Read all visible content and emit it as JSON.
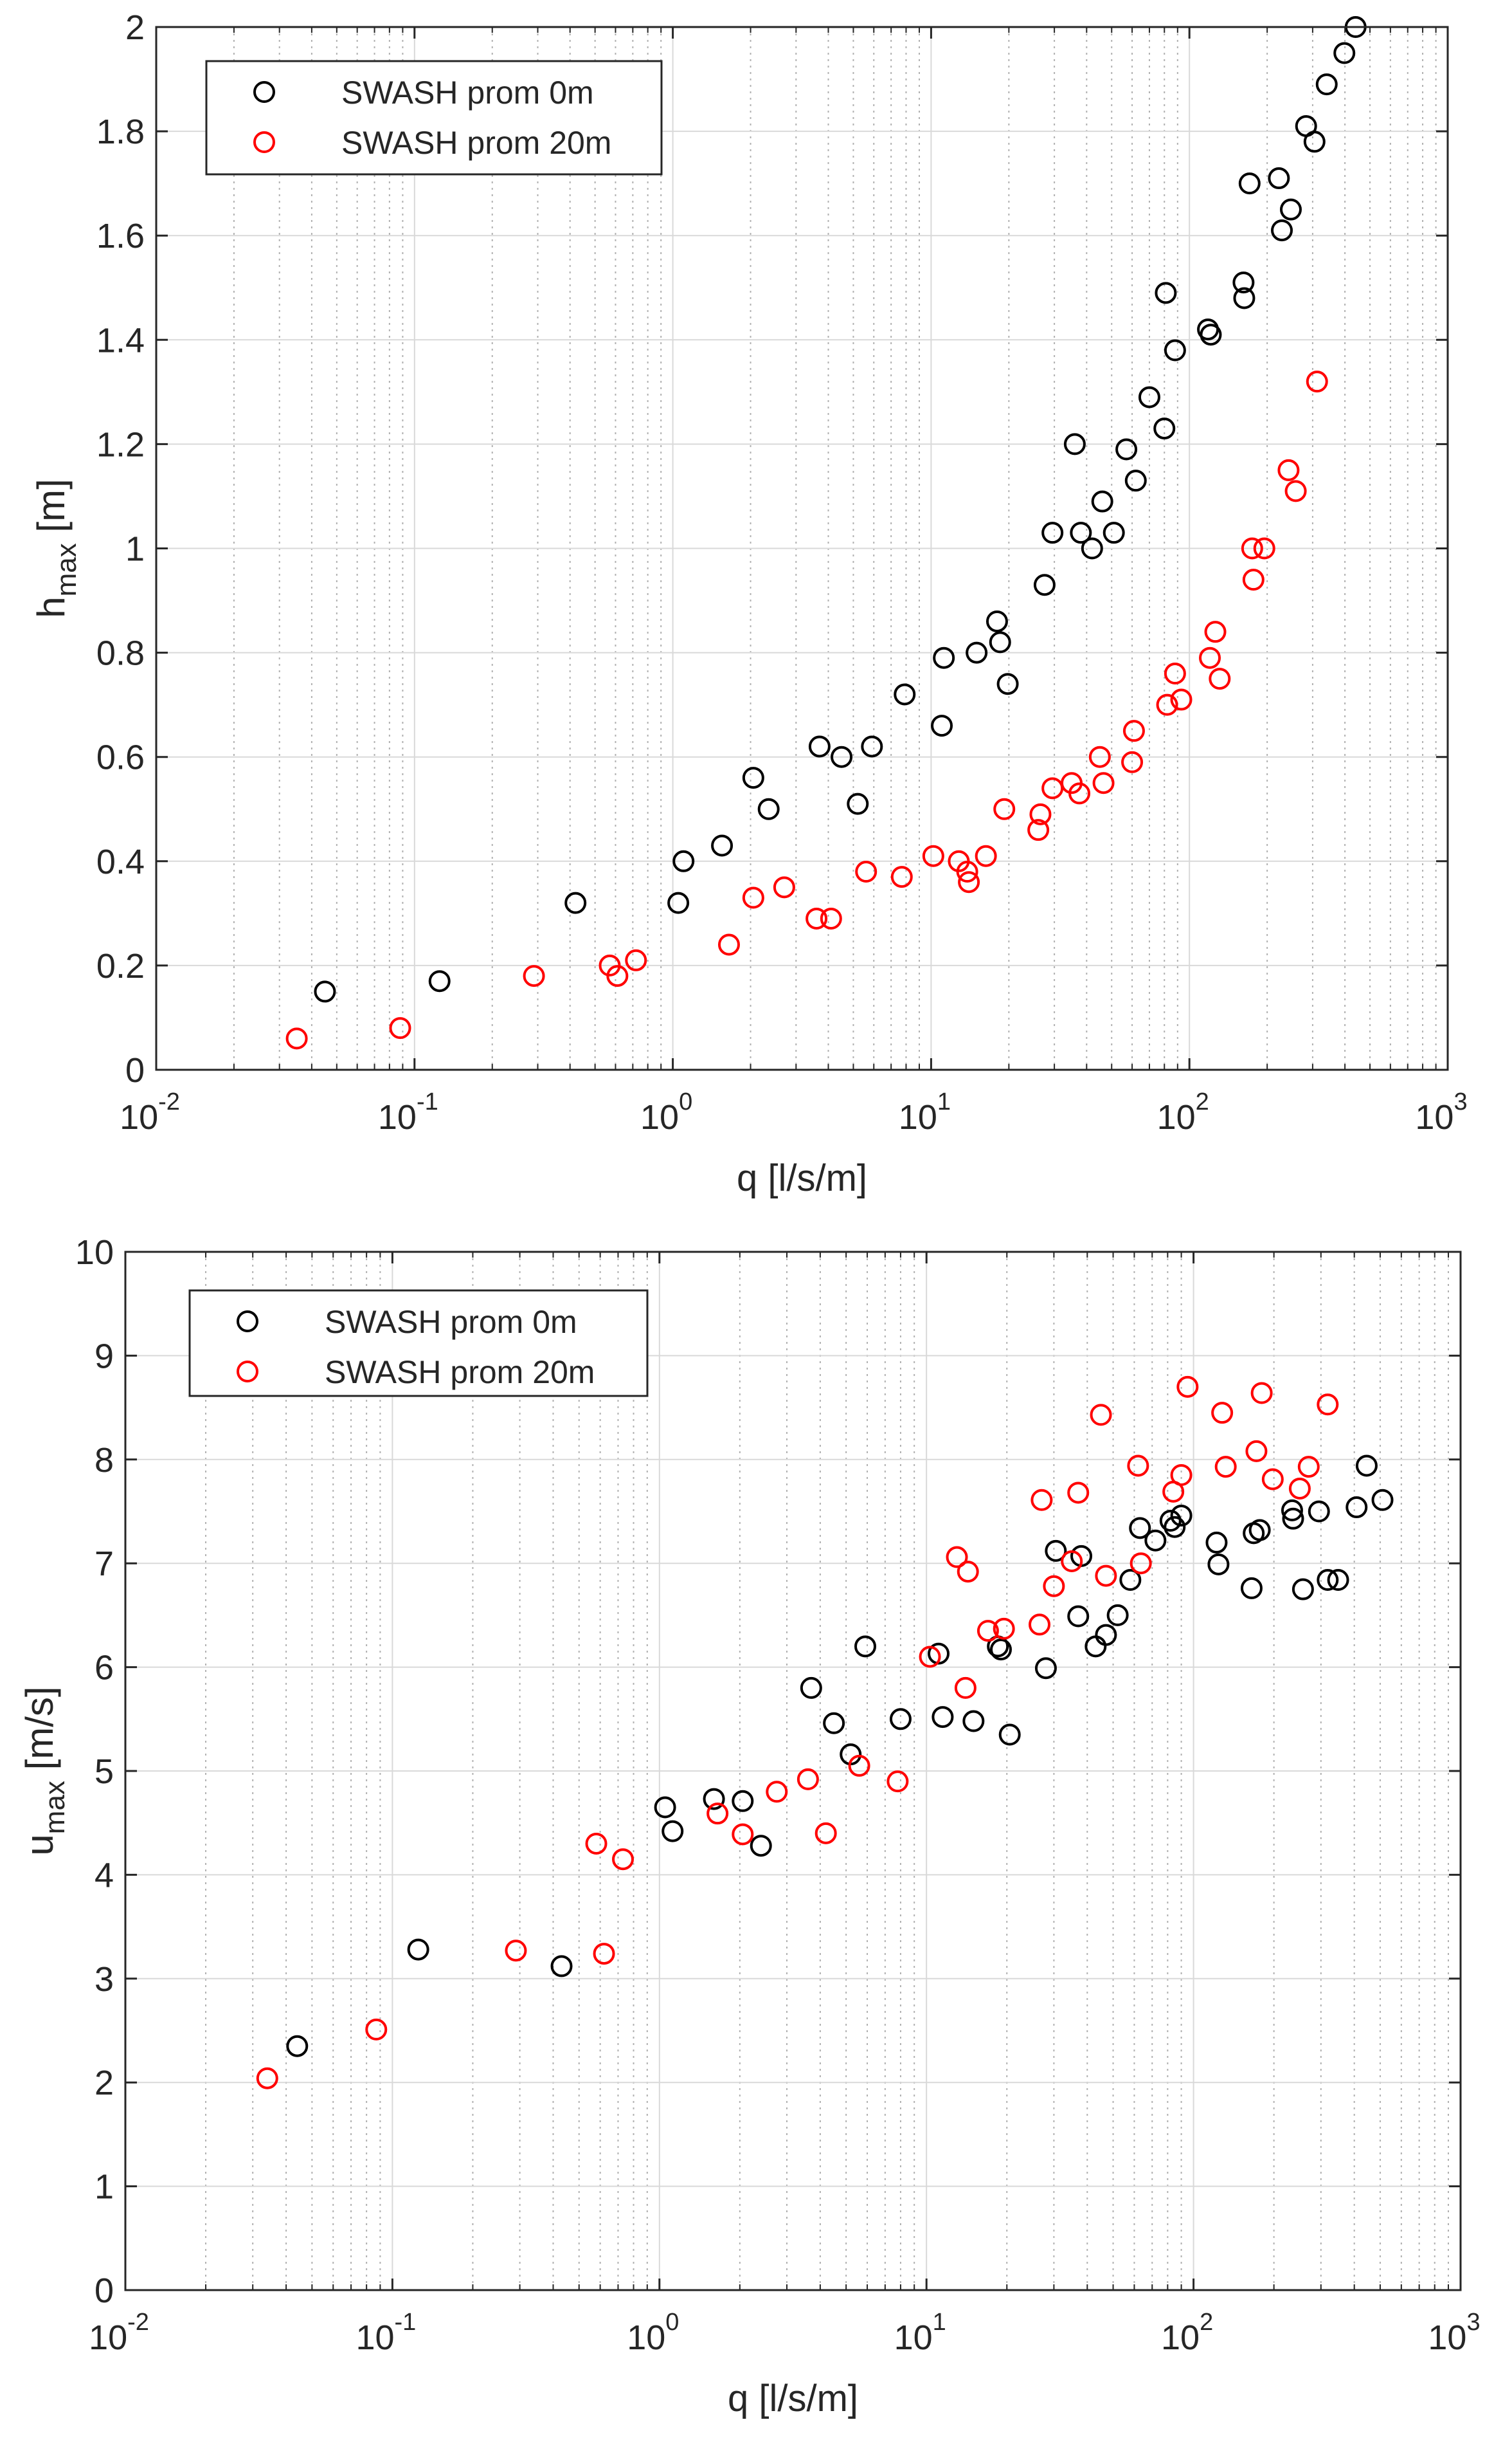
{
  "chart_data": [
    {
      "type": "scatter",
      "id": "h",
      "xscale": "log",
      "xlim": [
        0.01,
        1000
      ],
      "ylim": [
        0,
        2
      ],
      "xlabel": "q [l/s/m]",
      "ylabel": {
        "base": "h",
        "sub": "max",
        "unit": "[m]"
      },
      "x_ticks": [
        0.01,
        0.1,
        1,
        10,
        100,
        1000
      ],
      "x_tick_labels": [
        {
          "base": "10",
          "exp": "-2"
        },
        {
          "base": "10",
          "exp": "-1"
        },
        {
          "base": "10",
          "exp": "0"
        },
        {
          "base": "10",
          "exp": "1"
        },
        {
          "base": "10",
          "exp": "2"
        },
        {
          "base": "10",
          "exp": "3"
        }
      ],
      "y_ticks": [
        0,
        0.2,
        0.4,
        0.6,
        0.8,
        1,
        1.2,
        1.4,
        1.6,
        1.8,
        2
      ],
      "y_tick_labels": [
        "0",
        "0.2",
        "0.4",
        "0.6",
        "0.8",
        "1",
        "1.2",
        "1.4",
        "1.6",
        "1.8",
        "2"
      ],
      "grid": true,
      "legend_position": "top-left",
      "series": [
        {
          "name": "SWASH prom 0m",
          "color": "#000000",
          "points": [
            [
              0.045,
              0.15
            ],
            [
              0.125,
              0.17
            ],
            [
              0.42,
              0.32
            ],
            [
              1.05,
              0.32
            ],
            [
              1.1,
              0.4
            ],
            [
              1.55,
              0.43
            ],
            [
              2.05,
              0.56
            ],
            [
              2.35,
              0.5
            ],
            [
              3.7,
              0.62
            ],
            [
              4.5,
              0.6
            ],
            [
              5.2,
              0.51
            ],
            [
              5.9,
              0.62
            ],
            [
              7.9,
              0.72
            ],
            [
              11.0,
              0.66
            ],
            [
              11.2,
              0.79
            ],
            [
              15.0,
              0.8
            ],
            [
              18.0,
              0.86
            ],
            [
              18.5,
              0.82
            ],
            [
              19.8,
              0.74
            ],
            [
              27.5,
              0.93
            ],
            [
              29.5,
              1.03
            ],
            [
              36.0,
              1.2
            ],
            [
              38.0,
              1.03
            ],
            [
              42.0,
              1.0
            ],
            [
              46.0,
              1.09
            ],
            [
              51.0,
              1.03
            ],
            [
              57.0,
              1.19
            ],
            [
              62.0,
              1.13
            ],
            [
              70.0,
              1.29
            ],
            [
              80.0,
              1.23
            ],
            [
              81.0,
              1.49
            ],
            [
              88.0,
              1.38
            ],
            [
              118.0,
              1.42
            ],
            [
              121.0,
              1.41
            ],
            [
              162.0,
              1.51
            ],
            [
              163.0,
              1.48
            ],
            [
              171.0,
              1.7
            ],
            [
              222.0,
              1.71
            ],
            [
              228.0,
              1.61
            ],
            [
              247.0,
              1.65
            ],
            [
              283.0,
              1.81
            ],
            [
              305.0,
              1.78
            ],
            [
              340.0,
              1.89
            ],
            [
              398.0,
              1.95
            ],
            [
              440.0,
              2.0
            ]
          ]
        },
        {
          "name": "SWASH prom 20m",
          "color": "#ff0000",
          "points": [
            [
              0.035,
              0.06
            ],
            [
              0.088,
              0.08
            ],
            [
              0.29,
              0.18
            ],
            [
              0.57,
              0.2
            ],
            [
              0.61,
              0.18
            ],
            [
              0.72,
              0.21
            ],
            [
              1.65,
              0.24
            ],
            [
              2.05,
              0.33
            ],
            [
              2.7,
              0.35
            ],
            [
              3.6,
              0.29
            ],
            [
              4.1,
              0.29
            ],
            [
              5.6,
              0.38
            ],
            [
              7.7,
              0.37
            ],
            [
              10.2,
              0.41
            ],
            [
              12.8,
              0.4
            ],
            [
              13.8,
              0.38
            ],
            [
              14.0,
              0.36
            ],
            [
              16.3,
              0.41
            ],
            [
              19.2,
              0.5
            ],
            [
              26.0,
              0.46
            ],
            [
              26.5,
              0.49
            ],
            [
              29.5,
              0.54
            ],
            [
              35.0,
              0.55
            ],
            [
              37.5,
              0.53
            ],
            [
              45.0,
              0.6
            ],
            [
              46.5,
              0.55
            ],
            [
              60.0,
              0.59
            ],
            [
              61.0,
              0.65
            ],
            [
              82.0,
              0.7
            ],
            [
              88.0,
              0.76
            ],
            [
              93.0,
              0.71
            ],
            [
              120.0,
              0.79
            ],
            [
              126.0,
              0.84
            ],
            [
              131.0,
              0.75
            ],
            [
              175.0,
              1.0
            ],
            [
              177.0,
              0.94
            ],
            [
              195.0,
              1.0
            ],
            [
              242.0,
              1.15
            ],
            [
              258.0,
              1.11
            ],
            [
              312.0,
              1.32
            ]
          ]
        }
      ]
    },
    {
      "type": "scatter",
      "id": "u",
      "xscale": "log",
      "xlim": [
        0.01,
        1000
      ],
      "ylim": [
        0,
        10
      ],
      "xlabel": "q [l/s/m]",
      "ylabel": {
        "base": "u",
        "sub": "max",
        "unit": "[m/s]"
      },
      "x_ticks": [
        0.01,
        0.1,
        1,
        10,
        100,
        1000
      ],
      "x_tick_labels": [
        {
          "base": "10",
          "exp": "-2"
        },
        {
          "base": "10",
          "exp": "-1"
        },
        {
          "base": "10",
          "exp": "0"
        },
        {
          "base": "10",
          "exp": "1"
        },
        {
          "base": "10",
          "exp": "2"
        },
        {
          "base": "10",
          "exp": "3"
        }
      ],
      "y_ticks": [
        0,
        1,
        2,
        3,
        4,
        5,
        6,
        7,
        8,
        9,
        10
      ],
      "y_tick_labels": [
        "0",
        "1",
        "2",
        "3",
        "4",
        "5",
        "6",
        "7",
        "8",
        "9",
        "10"
      ],
      "grid": true,
      "legend_position": "top-left",
      "series": [
        {
          "name": "SWASH prom 0m",
          "color": "#000000",
          "points": [
            [
              0.044,
              2.35
            ],
            [
              0.125,
              3.28
            ],
            [
              0.43,
              3.12
            ],
            [
              1.05,
              4.65
            ],
            [
              1.12,
              4.42
            ],
            [
              1.6,
              4.73
            ],
            [
              2.05,
              4.71
            ],
            [
              2.4,
              4.28
            ],
            [
              3.7,
              5.8
            ],
            [
              4.5,
              5.46
            ],
            [
              5.2,
              5.16
            ],
            [
              5.9,
              6.2
            ],
            [
              8.0,
              5.5
            ],
            [
              11.1,
              6.13
            ],
            [
              11.5,
              5.52
            ],
            [
              15.0,
              5.48
            ],
            [
              18.5,
              6.2
            ],
            [
              19.0,
              6.17
            ],
            [
              20.5,
              5.35
            ],
            [
              28.0,
              5.99
            ],
            [
              30.5,
              7.12
            ],
            [
              37.0,
              6.49
            ],
            [
              38.0,
              7.07
            ],
            [
              43.0,
              6.2
            ],
            [
              47.0,
              6.31
            ],
            [
              52.0,
              6.5
            ],
            [
              58.0,
              6.84
            ],
            [
              63.0,
              7.34
            ],
            [
              72.0,
              7.22
            ],
            [
              82.0,
              7.41
            ],
            [
              85.0,
              7.35
            ],
            [
              90.0,
              7.46
            ],
            [
              122.0,
              7.2
            ],
            [
              124.0,
              6.99
            ],
            [
              165.0,
              6.76
            ],
            [
              168.0,
              7.29
            ],
            [
              177.0,
              7.32
            ],
            [
              234.0,
              7.51
            ],
            [
              236.0,
              7.43
            ],
            [
              257.0,
              6.75
            ],
            [
              295.0,
              7.5
            ],
            [
              318.0,
              6.84
            ],
            [
              348.0,
              6.84
            ],
            [
              408.0,
              7.54
            ],
            [
              445.0,
              7.94
            ],
            [
              510.0,
              7.61
            ]
          ]
        },
        {
          "name": "SWASH prom 20m",
          "color": "#ff0000",
          "points": [
            [
              0.034,
              2.04
            ],
            [
              0.087,
              2.51
            ],
            [
              0.29,
              3.27
            ],
            [
              0.58,
              4.3
            ],
            [
              0.62,
              3.24
            ],
            [
              0.73,
              4.15
            ],
            [
              1.65,
              4.59
            ],
            [
              2.05,
              4.39
            ],
            [
              2.75,
              4.8
            ],
            [
              3.6,
              4.92
            ],
            [
              4.2,
              4.4
            ],
            [
              5.6,
              5.05
            ],
            [
              7.8,
              4.9
            ],
            [
              10.3,
              6.1
            ],
            [
              13.0,
              7.06
            ],
            [
              14.0,
              5.8
            ],
            [
              14.3,
              6.92
            ],
            [
              17.0,
              6.35
            ],
            [
              19.5,
              6.37
            ],
            [
              26.5,
              6.41
            ],
            [
              27.0,
              7.61
            ],
            [
              30.0,
              6.78
            ],
            [
              35.0,
              7.02
            ],
            [
              37.0,
              7.68
            ],
            [
              45.0,
              8.43
            ],
            [
              47.0,
              6.88
            ],
            [
              62.0,
              7.94
            ],
            [
              63.5,
              7.0
            ],
            [
              84.0,
              7.69
            ],
            [
              90.0,
              7.85
            ],
            [
              95.0,
              8.7
            ],
            [
              128.0,
              8.45
            ],
            [
              132.0,
              7.93
            ],
            [
              172.0,
              8.08
            ],
            [
              180.0,
              8.64
            ],
            [
              198.0,
              7.81
            ],
            [
              250.0,
              7.72
            ],
            [
              270.0,
              7.93
            ],
            [
              318.0,
              8.53
            ]
          ]
        }
      ]
    }
  ]
}
